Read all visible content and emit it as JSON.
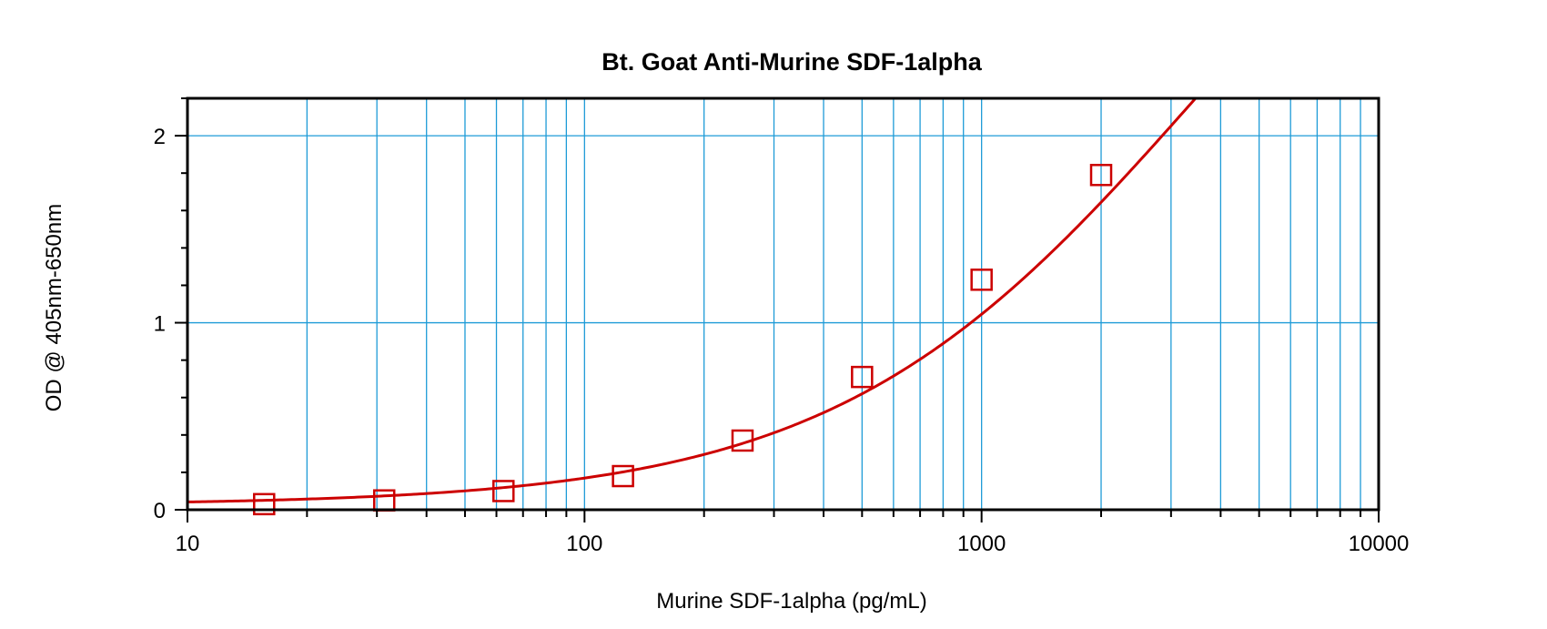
{
  "chart_data": {
    "type": "scatter",
    "title": "Bt. Goat Anti-Murine SDF-1alpha",
    "xlabel": "Murine SDF-1alpha (pg/mL)",
    "ylabel": "OD @ 405nm-650nm",
    "xscale": "log",
    "xlim": [
      10,
      10000
    ],
    "ylim": [
      0,
      2.2
    ],
    "x_ticks": [
      10,
      100,
      1000,
      10000
    ],
    "x_tick_labels": [
      "10",
      "100",
      "1000",
      "10000"
    ],
    "y_ticks": [
      0,
      1,
      2
    ],
    "y_tick_labels": [
      "0",
      "1",
      "2"
    ],
    "grid": true,
    "legend": "none",
    "points": {
      "marker": "square-open",
      "color": "#cc0000",
      "x": [
        15.6,
        31.3,
        62.5,
        125,
        250,
        500,
        1000,
        2000
      ],
      "y": [
        0.03,
        0.05,
        0.1,
        0.18,
        0.37,
        0.71,
        1.23,
        1.79
      ]
    },
    "fit_curve": {
      "type": "4PL",
      "color": "#cc0000",
      "bottom": 0.025,
      "top": 4.4,
      "ec50": 3500,
      "hill": 0.95
    },
    "colors": {
      "grid": "#1e9bd7",
      "frame": "#000000",
      "series": "#cc0000"
    }
  }
}
